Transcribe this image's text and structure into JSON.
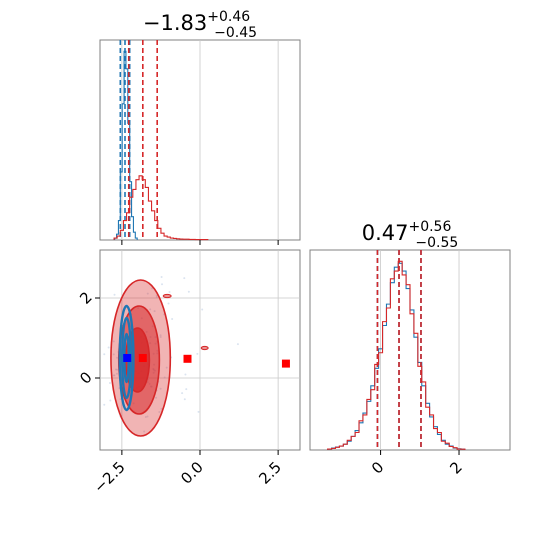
{
  "chart_data": {
    "type": "corner",
    "panels": [
      {
        "id": "hist_param1",
        "type": "histogram",
        "title": {
          "value": "-1.83",
          "plus": "+0.46",
          "minus": "-0.45"
        },
        "xlim": [
          -3.2,
          3.2
        ],
        "xticks": [
          -2.5,
          0.0,
          2.5
        ],
        "series": [
          {
            "color": "#1f77b4",
            "bin_width": 0.06,
            "bins": [
              [
                -2.7,
                0.01
              ],
              [
                -2.64,
                0.03
              ],
              [
                -2.58,
                0.1
              ],
              [
                -2.52,
                0.35
              ],
              [
                -2.46,
                0.7
              ],
              [
                -2.4,
                0.97
              ],
              [
                -2.34,
                0.88
              ],
              [
                -2.28,
                0.6
              ],
              [
                -2.22,
                0.3
              ],
              [
                -2.16,
                0.12
              ],
              [
                -2.1,
                0.04
              ],
              [
                -2.04,
                0.01
              ]
            ],
            "quantiles": [
              -2.55,
              -2.4,
              -2.25
            ]
          },
          {
            "color": "#d62728",
            "bin_width": 0.1,
            "bins": [
              [
                -2.7,
                0.01
              ],
              [
                -2.6,
                0.02
              ],
              [
                -2.5,
                0.05
              ],
              [
                -2.4,
                0.1
              ],
              [
                -2.3,
                0.14
              ],
              [
                -2.2,
                0.22
              ],
              [
                -2.1,
                0.26
              ],
              [
                -2.0,
                0.31
              ],
              [
                -1.9,
                0.33
              ],
              [
                -1.8,
                0.31
              ],
              [
                -1.7,
                0.27
              ],
              [
                -1.6,
                0.2
              ],
              [
                -1.5,
                0.15
              ],
              [
                -1.4,
                0.1
              ],
              [
                -1.3,
                0.06
              ],
              [
                -1.2,
                0.035
              ],
              [
                -1.1,
                0.02
              ],
              [
                -1.0,
                0.015
              ],
              [
                -0.9,
                0.01
              ],
              [
                -0.8,
                0.008
              ],
              [
                -0.7,
                0.006
              ],
              [
                -0.6,
                0.005
              ],
              [
                -0.5,
                0.004
              ],
              [
                -0.4,
                0.004
              ],
              [
                -0.3,
                0.003
              ],
              [
                -0.2,
                0.003
              ],
              [
                -0.1,
                0.002
              ],
              [
                0.0,
                0.002
              ],
              [
                0.1,
                0.002
              ],
              [
                0.2,
                0.002
              ]
            ],
            "quantiles": [
              -2.28,
              -1.83,
              -1.37
            ]
          }
        ]
      },
      {
        "id": "scatter_param1_param2",
        "type": "2d-contour",
        "xlim": [
          -3.2,
          3.2
        ],
        "ylim": [
          -1.8,
          3.2
        ],
        "xticks": [
          -2.5,
          0.0,
          2.5
        ],
        "yticks": [
          0,
          2
        ],
        "blue_contours": [
          {
            "cx": -2.35,
            "cy": 0.5,
            "rx": 0.22,
            "ry": 1.3
          },
          {
            "cx": -2.35,
            "cy": 0.5,
            "rx": 0.14,
            "ry": 1.0
          },
          {
            "cx": -2.35,
            "cy": 0.5,
            "rx": 0.07,
            "ry": 0.6
          }
        ],
        "red_contours": [
          {
            "cx": -1.9,
            "cy": 0.5,
            "rx": 0.95,
            "ry": 1.95,
            "opacity": 0.35
          },
          {
            "cx": -1.95,
            "cy": 0.45,
            "rx": 0.65,
            "ry": 1.35,
            "opacity": 0.55
          },
          {
            "cx": -2.0,
            "cy": 0.45,
            "rx": 0.38,
            "ry": 0.8,
            "opacity": 0.8
          }
        ],
        "markers": [
          {
            "x": -2.33,
            "y": 0.5,
            "color": "#0000ff"
          },
          {
            "x": -1.83,
            "y": 0.5,
            "color": "#ff0000"
          },
          {
            "x": -0.4,
            "y": 0.48,
            "color": "#ff0000"
          },
          {
            "x": 2.75,
            "y": 0.36,
            "color": "#ff0000"
          }
        ]
      },
      {
        "id": "hist_param2",
        "type": "histogram",
        "title": {
          "value": "0.47",
          "plus": "+0.56",
          "minus": "-0.55"
        },
        "xlim": [
          -1.8,
          3.3
        ],
        "xticks": [
          0,
          2
        ],
        "series": [
          {
            "color": "#1f77b4",
            "bin_width": 0.1,
            "bins": [
              [
                -1.3,
                0.005
              ],
              [
                -1.2,
                0.01
              ],
              [
                -1.1,
                0.015
              ],
              [
                -1.0,
                0.02
              ],
              [
                -0.9,
                0.03
              ],
              [
                -0.8,
                0.045
              ],
              [
                -0.7,
                0.07
              ],
              [
                -0.6,
                0.1
              ],
              [
                -0.5,
                0.14
              ],
              [
                -0.4,
                0.19
              ],
              [
                -0.3,
                0.25
              ],
              [
                -0.2,
                0.33
              ],
              [
                -0.1,
                0.42
              ],
              [
                0.0,
                0.52
              ],
              [
                0.1,
                0.64
              ],
              [
                0.2,
                0.75
              ],
              [
                0.3,
                0.86
              ],
              [
                0.4,
                0.94
              ],
              [
                0.5,
                0.96
              ],
              [
                0.6,
                0.92
              ],
              [
                0.7,
                0.83
              ],
              [
                0.8,
                0.72
              ],
              [
                0.9,
                0.58
              ],
              [
                1.0,
                0.45
              ],
              [
                1.1,
                0.33
              ],
              [
                1.2,
                0.24
              ],
              [
                1.3,
                0.17
              ],
              [
                1.4,
                0.12
              ],
              [
                1.5,
                0.08
              ],
              [
                1.6,
                0.05
              ],
              [
                1.7,
                0.03
              ],
              [
                1.8,
                0.02
              ],
              [
                1.9,
                0.01
              ],
              [
                2.0,
                0.006
              ],
              [
                2.1,
                0.004
              ]
            ],
            "quantiles": [
              -0.08,
              0.47,
              1.03
            ]
          },
          {
            "color": "#d62728",
            "bin_width": 0.1,
            "bins": [
              [
                -1.3,
                0.005
              ],
              [
                -1.2,
                0.008
              ],
              [
                -1.1,
                0.014
              ],
              [
                -1.0,
                0.02
              ],
              [
                -0.9,
                0.03
              ],
              [
                -0.8,
                0.05
              ],
              [
                -0.7,
                0.07
              ],
              [
                -0.6,
                0.09
              ],
              [
                -0.5,
                0.15
              ],
              [
                -0.4,
                0.18
              ],
              [
                -0.3,
                0.26
              ],
              [
                -0.2,
                0.31
              ],
              [
                -0.1,
                0.44
              ],
              [
                0.0,
                0.5
              ],
              [
                0.1,
                0.66
              ],
              [
                0.2,
                0.73
              ],
              [
                0.3,
                0.88
              ],
              [
                0.4,
                0.92
              ],
              [
                0.5,
                0.97
              ],
              [
                0.6,
                0.9
              ],
              [
                0.7,
                0.85
              ],
              [
                0.8,
                0.7
              ],
              [
                0.9,
                0.6
              ],
              [
                1.0,
                0.43
              ],
              [
                1.1,
                0.35
              ],
              [
                1.2,
                0.22
              ],
              [
                1.3,
                0.18
              ],
              [
                1.4,
                0.11
              ],
              [
                1.5,
                0.09
              ],
              [
                1.6,
                0.045
              ],
              [
                1.7,
                0.035
              ],
              [
                1.8,
                0.018
              ],
              [
                1.9,
                0.012
              ],
              [
                2.0,
                0.005
              ],
              [
                2.1,
                0.004
              ]
            ],
            "quantiles": [
              -0.08,
              0.47,
              1.03
            ]
          }
        ]
      }
    ]
  }
}
